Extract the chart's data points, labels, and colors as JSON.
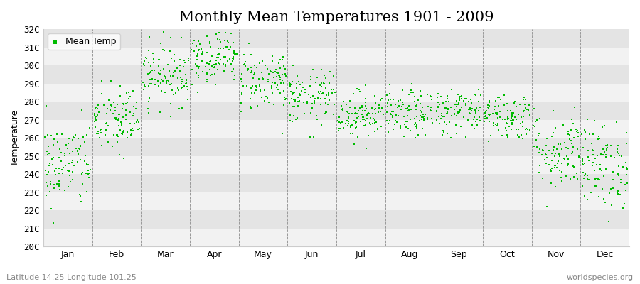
{
  "title": "Monthly Mean Temperatures 1901 - 2009",
  "ylabel": "Temperature",
  "xlabel": "",
  "footnote_left": "Latitude 14.25 Longitude 101.25",
  "footnote_right": "worldspecies.org",
  "legend_label": "Mean Temp",
  "dot_color": "#00bb00",
  "dot_size": 2.5,
  "bg_color": "#ffffff",
  "plot_bg_light": "#f2f2f2",
  "plot_bg_dark": "#e4e4e4",
  "ylim": [
    20,
    32
  ],
  "yticks": [
    20,
    21,
    22,
    23,
    24,
    25,
    26,
    27,
    28,
    29,
    30,
    31,
    32
  ],
  "ytick_labels": [
    "20C",
    "21C",
    "22C",
    "23C",
    "24C",
    "25C",
    "26C",
    "27C",
    "28C",
    "29C",
    "30C",
    "31C",
    "32C"
  ],
  "months": [
    "Jan",
    "Feb",
    "Mar",
    "Apr",
    "May",
    "Jun",
    "Jul",
    "Aug",
    "Sep",
    "Oct",
    "Nov",
    "Dec"
  ],
  "month_positions": [
    0.5,
    1.5,
    2.5,
    3.5,
    4.5,
    5.5,
    6.5,
    7.5,
    8.5,
    9.5,
    10.5,
    11.5
  ],
  "month_boundaries": [
    0,
    1,
    2,
    3,
    4,
    5,
    6,
    7,
    8,
    9,
    10,
    11,
    12
  ],
  "title_fontsize": 15,
  "axis_fontsize": 9,
  "tick_fontsize": 9,
  "seed": 42,
  "n_years": 109,
  "mean_temps_by_month": [
    24.5,
    27.0,
    29.5,
    30.5,
    29.2,
    28.2,
    27.3,
    27.3,
    27.5,
    27.2,
    25.3,
    24.5
  ],
  "std_temps_by_month": [
    1.2,
    1.0,
    0.85,
    0.75,
    0.85,
    0.75,
    0.65,
    0.65,
    0.65,
    0.65,
    1.1,
    1.2
  ]
}
